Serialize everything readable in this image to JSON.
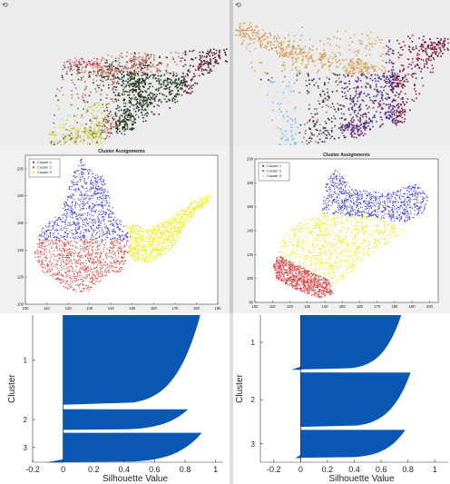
{
  "colors": {
    "cluster1": "#3a3ad8",
    "cluster2": "#e23a3a",
    "cluster3": "#f0ef00",
    "silhouette_fill": "#0a58b4",
    "figure_bg": "#f0f0f0"
  },
  "icons": {
    "rotate": "rotate-3d-icon"
  },
  "chart_data": [
    {
      "type": "scatter",
      "title": "",
      "description_panel": "3D color point cloud (left)",
      "series": [
        {
          "values": [
            [
              0.25,
              0.03
            ],
            [
              0.4,
              0.06
            ],
            [
              0.55,
              0.15
            ],
            [
              0.62,
              0.32
            ],
            [
              0.3,
              0.55
            ],
            [
              0.45,
              0.55
            ],
            [
              0.6,
              0.45
            ],
            [
              0.8,
              0.4
            ],
            [
              0.95,
              0.62
            ],
            [
              0.6,
              0.6
            ]
          ]
        }
      ]
    },
    {
      "type": "scatter",
      "title": "",
      "description_panel": "3D color point cloud (right)",
      "series": [
        {
          "values": [
            [
              0.25,
              0.05
            ],
            [
              0.55,
              0.1
            ],
            [
              0.75,
              0.2
            ],
            [
              0.05,
              0.8
            ],
            [
              0.25,
              0.65
            ],
            [
              0.55,
              0.55
            ],
            [
              0.75,
              0.45
            ],
            [
              0.95,
              0.7
            ]
          ]
        }
      ]
    },
    {
      "type": "scatter",
      "title": "Cluster Assignments",
      "xlim": [
        100,
        190
      ],
      "ylim": [
        100,
        210
      ],
      "xticks": [
        100,
        110,
        120,
        130,
        140,
        150,
        160,
        170,
        180,
        190
      ],
      "yticks": [
        100,
        120,
        140,
        160,
        180,
        200
      ],
      "legend": "top-left",
      "series": [
        {
          "name": "Cluster 1",
          "polygon": [
            [
              110,
              160
            ],
            [
              114,
              165
            ],
            [
              119,
              180
            ],
            [
              122,
              197
            ],
            [
              126,
              208
            ],
            [
              129,
              202
            ],
            [
              132,
              196
            ],
            [
              136,
              195
            ],
            [
              141,
              170
            ],
            [
              146,
              158
            ],
            [
              149,
              150
            ],
            [
              148,
              148
            ],
            [
              106,
              148
            ],
            [
              106,
              154
            ]
          ]
        },
        {
          "name": "Cluster 2",
          "polygon": [
            [
              106,
              148
            ],
            [
              148,
              148
            ],
            [
              149,
              140
            ],
            [
              145,
              125
            ],
            [
              138,
              122
            ],
            [
              128,
              108
            ],
            [
              120,
              110
            ],
            [
              114,
              118
            ],
            [
              106,
              126
            ],
            [
              104,
              138
            ]
          ]
        },
        {
          "name": "Cluster 3",
          "polygon": [
            [
              146,
              158
            ],
            [
              151,
              160
            ],
            [
              156,
              155
            ],
            [
              167,
              163
            ],
            [
              177,
              175
            ],
            [
              186,
              182
            ],
            [
              186,
              176
            ],
            [
              175,
              160
            ],
            [
              168,
              140
            ],
            [
              158,
              131
            ],
            [
              150,
              132
            ],
            [
              148,
              140
            ],
            [
              149,
              150
            ]
          ]
        }
      ]
    },
    {
      "type": "scatter",
      "title": "Cluster Assignments",
      "xlim": [
        100,
        205
      ],
      "ylim": [
        80,
        200
      ],
      "xticks": [
        100,
        110,
        120,
        130,
        140,
        150,
        160,
        170,
        180,
        190,
        200
      ],
      "yticks": [
        80,
        100,
        120,
        140,
        160,
        180,
        200
      ],
      "legend": "top-left",
      "series": [
        {
          "name": "Cluster 1",
          "polygon": [
            [
              138,
              155
            ],
            [
              140,
              180
            ],
            [
              146,
              192
            ],
            [
              152,
              182
            ],
            [
              158,
              175
            ],
            [
              175,
              172
            ],
            [
              192,
              180
            ],
            [
              199,
              168
            ],
            [
              197,
              156
            ],
            [
              185,
              147
            ],
            [
              172,
              150
            ]
          ]
        },
        {
          "name": "Cluster 2",
          "polygon": [
            [
              113,
              120
            ],
            [
              142,
              99
            ],
            [
              145,
              88
            ],
            [
              137,
              84
            ],
            [
              125,
              90
            ],
            [
              112,
              100
            ],
            [
              110,
              112
            ]
          ]
        },
        {
          "name": "Cluster 3",
          "polygon": [
            [
              113,
              120
            ],
            [
              116,
              138
            ],
            [
              125,
              147
            ],
            [
              138,
              155
            ],
            [
              172,
              150
            ],
            [
              186,
              140
            ],
            [
              166,
              120
            ],
            [
              155,
              106
            ],
            [
              146,
              95
            ],
            [
              142,
              99
            ]
          ]
        }
      ]
    },
    {
      "type": "bar",
      "orientation": "horizontal",
      "xlabel": "Silhouette Value",
      "ylabel": "Cluster",
      "xlim": [
        -0.2,
        1.05
      ],
      "xticks": [
        -0.2,
        0,
        0.2,
        0.4,
        0.6,
        0.8,
        1
      ],
      "xtick_labels": [
        "-0.2",
        "0",
        "0.2",
        "0.4",
        "0.6",
        "0.8",
        "1"
      ],
      "yticks": [
        "1",
        "2",
        "3"
      ],
      "clusters": [
        {
          "label": "1",
          "row_start": 0.0,
          "row_end": 0.61,
          "max": 0.9,
          "min": 0.0
        },
        {
          "label": "2",
          "row_start": 0.64,
          "row_end": 0.78,
          "max": 0.82,
          "min": 0.0
        },
        {
          "label": "3",
          "row_start": 0.8,
          "row_end": 1.0,
          "max": 0.91,
          "min": -0.11
        }
      ]
    },
    {
      "type": "bar",
      "orientation": "horizontal",
      "xlabel": "Silhouette Value",
      "ylabel": "Cluster",
      "xlim": [
        -0.3,
        1.1
      ],
      "xticks": [
        -0.2,
        0,
        0.2,
        0.4,
        0.6,
        0.8,
        1
      ],
      "xtick_labels": [
        "-0.2",
        "0",
        "0.2",
        "0.4",
        "0.6",
        "0.8",
        "1"
      ],
      "yticks": [
        "1",
        "2",
        "3"
      ],
      "clusters": [
        {
          "label": "1",
          "row_start": 0.0,
          "row_end": 0.37,
          "max": 0.75,
          "min": -0.07
        },
        {
          "label": "2",
          "row_start": 0.39,
          "row_end": 0.76,
          "max": 0.82,
          "min": 0.0
        },
        {
          "label": "3",
          "row_start": 0.78,
          "row_end": 0.97,
          "max": 0.78,
          "min": -0.04
        }
      ]
    }
  ]
}
